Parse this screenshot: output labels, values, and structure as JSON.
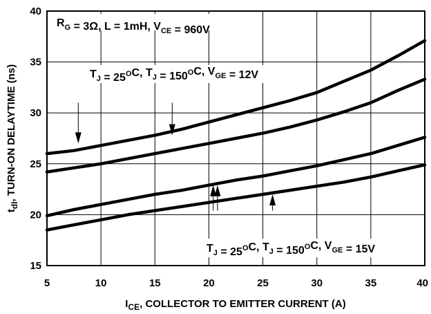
{
  "chart_data": {
    "type": "line",
    "xlabel_main": "I",
    "xlabel_sub": "CE",
    "xlabel_rest": ", COLLECTOR TO EMITTER CURRENT (A)",
    "ylabel_main": "t",
    "ylabel_sub": "dI",
    "ylabel_rest": ", TURN-ON DELAYTIME (ns)",
    "xlim": [
      5,
      40
    ],
    "ylim": [
      15,
      40
    ],
    "x_ticks": [
      5,
      10,
      15,
      20,
      25,
      30,
      35,
      40
    ],
    "y_ticks": [
      15,
      20,
      25,
      30,
      35,
      40
    ],
    "grid": true,
    "conditions": {
      "parts": [
        {
          "t": "R",
          "sub": "G"
        },
        {
          "t": " = 3Ω, L = 1mH, V",
          "sub": "CE"
        },
        {
          "t": " = 960V"
        }
      ]
    },
    "label_12v": {
      "parts": [
        {
          "t": "T",
          "sub": "J"
        },
        {
          "t": " = 25",
          "sup": "O"
        },
        {
          "t": "C, T",
          "sub": "J"
        },
        {
          "t": " = 150",
          "sup": "O"
        },
        {
          "t": "C, V",
          "sub": "GE"
        },
        {
          "t": " = 12V"
        }
      ]
    },
    "label_15v": {
      "parts": [
        {
          "t": "T",
          "sub": "J"
        },
        {
          "t": " = 25",
          "sup": "O"
        },
        {
          "t": "C, T",
          "sub": "J"
        },
        {
          "t": " = 150",
          "sup": "O"
        },
        {
          "t": "C, V",
          "sub": "GE"
        },
        {
          "t": " = 15V"
        }
      ]
    },
    "series": [
      {
        "x": [
          5,
          7.5,
          10,
          12.5,
          15,
          17.5,
          20,
          22.5,
          25,
          27.5,
          30,
          32.5,
          35,
          37.5,
          40
        ],
        "y": [
          26.0,
          26.3,
          26.8,
          27.3,
          27.8,
          28.4,
          29.1,
          29.8,
          30.5,
          31.2,
          32.0,
          33.1,
          34.2,
          35.6,
          37.1
        ]
      },
      {
        "x": [
          5,
          7.5,
          10,
          12.5,
          15,
          17.5,
          20,
          22.5,
          25,
          27.5,
          30,
          32.5,
          35,
          37.5,
          40
        ],
        "y": [
          24.2,
          24.6,
          25.0,
          25.5,
          26.0,
          26.5,
          27.0,
          27.5,
          28.0,
          28.6,
          29.3,
          30.1,
          31.0,
          32.2,
          33.3
        ]
      },
      {
        "x": [
          5,
          7.5,
          10,
          12.5,
          15,
          17.5,
          20,
          22.5,
          25,
          27.5,
          30,
          32.5,
          35,
          37.5,
          40
        ],
        "y": [
          19.9,
          20.5,
          21.0,
          21.5,
          22.0,
          22.4,
          22.9,
          23.4,
          23.8,
          24.3,
          24.8,
          25.4,
          26.0,
          26.8,
          27.6
        ]
      },
      {
        "x": [
          5,
          7.5,
          10,
          12.5,
          15,
          17.5,
          20,
          22.5,
          25,
          27.5,
          30,
          32.5,
          35,
          37.5,
          40
        ],
        "y": [
          18.5,
          19.0,
          19.5,
          20.0,
          20.4,
          20.8,
          21.2,
          21.6,
          22.0,
          22.4,
          22.8,
          23.2,
          23.7,
          24.3,
          24.9
        ]
      }
    ],
    "arrows": [
      {
        "from": [
          7.9,
          31.0
        ],
        "to": [
          7.9,
          27.0
        ]
      },
      {
        "from": [
          16.6,
          31.0
        ],
        "to": [
          16.6,
          27.8
        ]
      },
      {
        "from": [
          20.4,
          20.4
        ],
        "to": [
          20.4,
          22.9
        ]
      },
      {
        "from": [
          20.8,
          20.4
        ],
        "to": [
          20.8,
          22.9
        ]
      },
      {
        "from": [
          25.9,
          20.4
        ],
        "to": [
          25.9,
          22.0
        ]
      }
    ]
  }
}
